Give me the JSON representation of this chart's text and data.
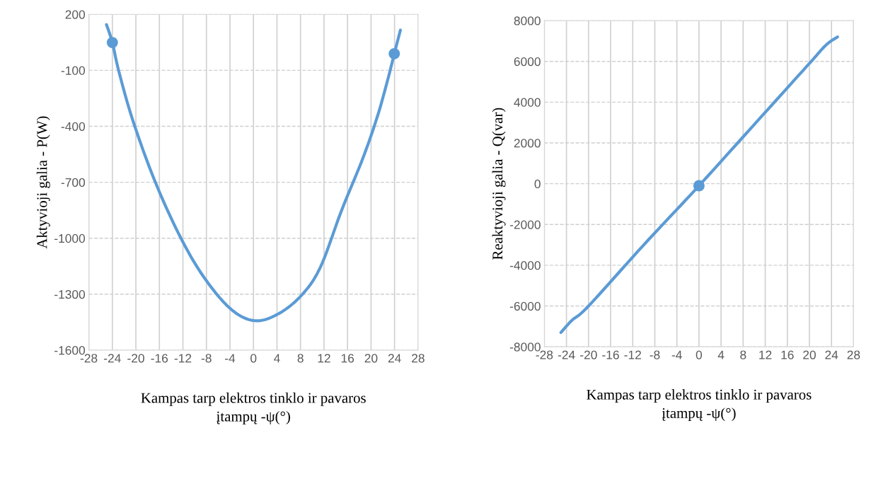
{
  "chart_data": [
    {
      "type": "line",
      "xlabel": "Kampas tarp elektros tinklo ir pavaros įtampų -ψ(°)",
      "ylabel": "Aktyvioji galia - P(W)",
      "series": [
        {
          "color": "#5b9bd5",
          "x": [
            -25.0,
            -24.0,
            -22.9,
            -20.5,
            -16.7,
            -12.3,
            -8.25,
            -3.8,
            0.2,
            4.2,
            8.2,
            11.4,
            15.0,
            18.6,
            21.1,
            22.9,
            23.95,
            25.0
          ],
          "values": [
            145,
            49,
            -105,
            -370,
            -699,
            -1002,
            -1217,
            -1381,
            -1442,
            -1406,
            -1305,
            -1154,
            -850,
            -572,
            -345,
            -143,
            -11,
            116
          ]
        },
        {
          "type": "scatter",
          "color": "#5b9bd5",
          "x": [
            -24.0,
            23.95
          ],
          "values": [
            49,
            -11
          ]
        }
      ],
      "xlim": [
        -28,
        28
      ],
      "xticks": [
        -28,
        -24,
        -20,
        -16,
        -12,
        -8,
        -4,
        0,
        4,
        8,
        12,
        16,
        20,
        24,
        28
      ],
      "ylim": [
        -1600,
        200
      ],
      "yticks": [
        -1600,
        -1300,
        -1000,
        -700,
        -400,
        -100,
        200
      ],
      "grid": true,
      "legend": false
    },
    {
      "type": "line",
      "xlabel": "Kampas tarp elektros tinklo ir pavaros įtampų -ψ(°)",
      "ylabel": "Reaktyvioji galia - Q(var)",
      "series": [
        {
          "color": "#5b9bd5",
          "x": [
            -25.0,
            -23.0,
            -20.0,
            -10.0,
            0.0,
            10.0,
            20.0,
            23.0,
            25.1
          ],
          "values": [
            -7300,
            -6700,
            -6000,
            -3000,
            -100,
            2900,
            5900,
            6800,
            7200
          ]
        },
        {
          "type": "scatter",
          "color": "#5b9bd5",
          "x": [
            0.0
          ],
          "values": [
            -100
          ]
        }
      ],
      "xlim": [
        -28,
        28
      ],
      "xticks": [
        -28,
        -24,
        -20,
        -16,
        -12,
        -8,
        -4,
        0,
        4,
        8,
        12,
        16,
        20,
        24,
        28
      ],
      "ylim": [
        -8000,
        8000
      ],
      "yticks": [
        -8000,
        -6000,
        -4000,
        -2000,
        0,
        2000,
        4000,
        6000,
        8000
      ],
      "grid": true,
      "legend": false
    }
  ]
}
